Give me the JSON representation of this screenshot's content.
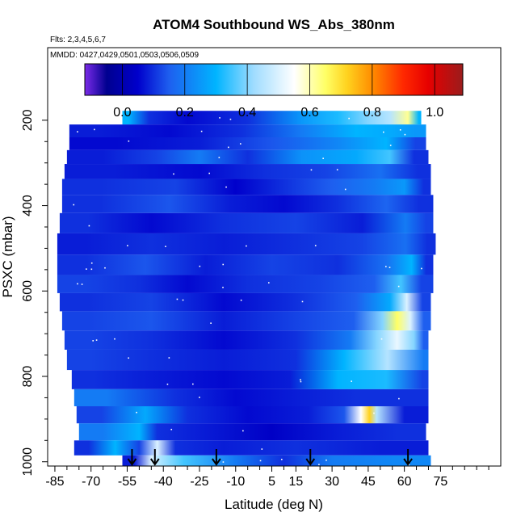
{
  "chart_data": {
    "type": "heatmap",
    "title": "ATOM4 Southbound WS_Abs_380nm",
    "subtitle_flights": "Flts: 2,3,4,5,6,7",
    "subtitle_dates": "MMDD: 0427,0429,0501,0503,0506,0509",
    "xlabel": "Latitude (deg N)",
    "ylabel": "PSXC (mbar)",
    "xlim": [
      -88,
      100
    ],
    "ylim": [
      1010,
      30
    ],
    "x_ticks": [
      -85,
      -70,
      -55,
      -40,
      -25,
      -10,
      5,
      15,
      30,
      45,
      60,
      75
    ],
    "y_ticks": [
      200,
      400,
      600,
      800,
      1000
    ],
    "colorbar": {
      "range": [
        -0.12,
        1.09
      ],
      "ticks": [
        0.0,
        0.2,
        0.4,
        0.6,
        0.8,
        1.0
      ],
      "tick_labels": [
        "0.0",
        "0.2",
        "0.4",
        "0.6",
        "0.8",
        "1.0"
      ],
      "divisions": [
        0.0,
        0.2,
        0.4,
        0.6,
        0.8,
        1.0
      ],
      "colors": [
        "#7b2be8",
        "#00008f",
        "#0000cc",
        "#1e5fef",
        "#00b4ff",
        "#9fdcff",
        "#ffffff",
        "#ffff66",
        "#ffd21e",
        "#ff8c00",
        "#ff2800",
        "#e60000",
        "#9b1c1c"
      ],
      "color_stops": [
        -0.12,
        -0.05,
        0.05,
        0.15,
        0.3,
        0.42,
        0.55,
        0.65,
        0.72,
        0.8,
        0.9,
        0.98,
        1.09
      ]
    },
    "layers": [
      {
        "p": 195,
        "lat_min": -57,
        "lat_max": 67,
        "segments": [
          [
            -57,
            -52,
            0.3
          ],
          [
            -52,
            -40,
            0.1
          ],
          [
            -40,
            -20,
            0.06
          ],
          [
            -20,
            10,
            0.1
          ],
          [
            10,
            25,
            0.25
          ],
          [
            25,
            40,
            0.32
          ],
          [
            40,
            50,
            0.4
          ],
          [
            50,
            58,
            0.45
          ],
          [
            58,
            65,
            0.62
          ],
          [
            65,
            67,
            0.3
          ]
        ]
      },
      {
        "p": 225,
        "lat_min": -79,
        "lat_max": 69,
        "segments": [
          [
            -79,
            -55,
            0.08
          ],
          [
            -55,
            -20,
            0.06
          ],
          [
            -20,
            5,
            0.1
          ],
          [
            5,
            30,
            0.2
          ],
          [
            30,
            50,
            0.3
          ],
          [
            50,
            60,
            0.28
          ],
          [
            60,
            69,
            0.25
          ]
        ]
      },
      {
        "p": 255,
        "lat_min": -79,
        "lat_max": 69,
        "segments": [
          [
            -79,
            -40,
            0.06
          ],
          [
            -40,
            -10,
            0.08
          ],
          [
            -10,
            20,
            0.14
          ],
          [
            20,
            45,
            0.22
          ],
          [
            45,
            60,
            0.3
          ],
          [
            60,
            69,
            0.12
          ]
        ]
      },
      {
        "p": 285,
        "lat_min": -80,
        "lat_max": 70,
        "segments": [
          [
            -80,
            -50,
            0.08
          ],
          [
            -50,
            -35,
            0.12
          ],
          [
            -35,
            -15,
            0.2
          ],
          [
            -15,
            5,
            0.1
          ],
          [
            5,
            30,
            0.24
          ],
          [
            30,
            50,
            0.28
          ],
          [
            50,
            58,
            0.35
          ],
          [
            58,
            70,
            0.1
          ]
        ]
      },
      {
        "p": 320,
        "lat_min": -81,
        "lat_max": 71,
        "segments": [
          [
            -81,
            -40,
            0.08
          ],
          [
            -40,
            -10,
            0.06
          ],
          [
            -10,
            15,
            0.1
          ],
          [
            15,
            40,
            0.12
          ],
          [
            40,
            60,
            0.18
          ],
          [
            60,
            71,
            0.1
          ]
        ]
      },
      {
        "p": 355,
        "lat_min": -82,
        "lat_max": 71,
        "segments": [
          [
            -82,
            -50,
            0.1
          ],
          [
            -50,
            -20,
            0.12
          ],
          [
            -20,
            0,
            0.05
          ],
          [
            0,
            20,
            0.1
          ],
          [
            20,
            40,
            0.15
          ],
          [
            40,
            55,
            0.2
          ],
          [
            55,
            65,
            0.25
          ],
          [
            65,
            71,
            0.1
          ]
        ]
      },
      {
        "p": 395,
        "lat_min": -82,
        "lat_max": 72,
        "segments": [
          [
            -82,
            -50,
            0.1
          ],
          [
            -50,
            -25,
            0.14
          ],
          [
            -25,
            0,
            0.08
          ],
          [
            0,
            20,
            0.06
          ],
          [
            20,
            45,
            0.1
          ],
          [
            45,
            60,
            0.16
          ],
          [
            60,
            72,
            0.1
          ]
        ]
      },
      {
        "p": 440,
        "lat_min": -83,
        "lat_max": 72,
        "segments": [
          [
            -83,
            -60,
            0.1
          ],
          [
            -60,
            -30,
            0.06
          ],
          [
            -30,
            0,
            0.1
          ],
          [
            0,
            30,
            0.12
          ],
          [
            30,
            55,
            0.08
          ],
          [
            55,
            66,
            0.2
          ],
          [
            66,
            72,
            0.12
          ]
        ]
      },
      {
        "p": 490,
        "lat_min": -84,
        "lat_max": 73,
        "segments": [
          [
            -84,
            -60,
            0.08
          ],
          [
            -60,
            -30,
            0.1
          ],
          [
            -30,
            0,
            0.08
          ],
          [
            0,
            30,
            0.1
          ],
          [
            30,
            55,
            0.12
          ],
          [
            55,
            66,
            0.18
          ],
          [
            66,
            73,
            0.1
          ]
        ]
      },
      {
        "p": 540,
        "lat_min": -84,
        "lat_max": 72,
        "segments": [
          [
            -84,
            -60,
            0.1
          ],
          [
            -60,
            -35,
            0.14
          ],
          [
            -35,
            -10,
            0.08
          ],
          [
            -10,
            20,
            0.12
          ],
          [
            20,
            45,
            0.1
          ],
          [
            45,
            60,
            0.18
          ],
          [
            60,
            66,
            0.3
          ],
          [
            66,
            72,
            0.1
          ]
        ]
      },
      {
        "p": 585,
        "lat_min": -84,
        "lat_max": 72,
        "segments": [
          [
            -84,
            -60,
            0.12
          ],
          [
            -60,
            -40,
            0.1
          ],
          [
            -40,
            -20,
            0.06
          ],
          [
            -20,
            10,
            0.1
          ],
          [
            10,
            40,
            0.12
          ],
          [
            40,
            55,
            0.15
          ],
          [
            55,
            62,
            0.35
          ],
          [
            62,
            72,
            0.12
          ]
        ]
      },
      {
        "p": 625,
        "lat_min": -83,
        "lat_max": 71,
        "segments": [
          [
            -83,
            -60,
            0.1
          ],
          [
            -60,
            -30,
            0.12
          ],
          [
            -30,
            0,
            0.06
          ],
          [
            0,
            30,
            0.1
          ],
          [
            30,
            50,
            0.15
          ],
          [
            50,
            58,
            0.28
          ],
          [
            58,
            64,
            0.5
          ],
          [
            64,
            71,
            0.12
          ]
        ]
      },
      {
        "p": 670,
        "lat_min": -82,
        "lat_max": 71,
        "segments": [
          [
            -82,
            -60,
            0.12
          ],
          [
            -60,
            -30,
            0.14
          ],
          [
            -30,
            0,
            0.08
          ],
          [
            0,
            30,
            0.12
          ],
          [
            30,
            48,
            0.15
          ],
          [
            48,
            54,
            0.4
          ],
          [
            54,
            60,
            0.65
          ],
          [
            60,
            65,
            0.5
          ],
          [
            65,
            71,
            0.15
          ]
        ]
      },
      {
        "p": 715,
        "lat_min": -81,
        "lat_max": 70,
        "segments": [
          [
            -81,
            -60,
            0.12
          ],
          [
            -60,
            -30,
            0.1
          ],
          [
            -30,
            0,
            0.06
          ],
          [
            0,
            30,
            0.1
          ],
          [
            30,
            45,
            0.2
          ],
          [
            45,
            52,
            0.4
          ],
          [
            52,
            62,
            0.52
          ],
          [
            62,
            66,
            0.4
          ],
          [
            66,
            70,
            0.15
          ]
        ]
      },
      {
        "p": 760,
        "lat_min": -80,
        "lat_max": 70,
        "segments": [
          [
            -80,
            -60,
            0.12
          ],
          [
            -60,
            -30,
            0.1
          ],
          [
            -30,
            0,
            0.08
          ],
          [
            0,
            30,
            0.1
          ],
          [
            30,
            40,
            0.3
          ],
          [
            40,
            66,
            0.45
          ],
          [
            66,
            70,
            0.2
          ]
        ]
      },
      {
        "p": 810,
        "lat_min": -78,
        "lat_max": 70,
        "segments": [
          [
            -78,
            -60,
            0.1
          ],
          [
            -60,
            -30,
            0.08
          ],
          [
            -30,
            0,
            0.06
          ],
          [
            0,
            25,
            0.08
          ],
          [
            25,
            40,
            0.3
          ],
          [
            40,
            65,
            0.32
          ],
          [
            65,
            70,
            0.12
          ]
        ]
      },
      {
        "p": 850,
        "lat_min": -77,
        "lat_max": 70,
        "segments": [
          [
            -77,
            -50,
            0.2
          ],
          [
            -50,
            -20,
            0.1
          ],
          [
            -20,
            0,
            0.06
          ],
          [
            0,
            30,
            0.08
          ],
          [
            30,
            50,
            0.1
          ],
          [
            50,
            70,
            0.1
          ]
        ]
      },
      {
        "p": 890,
        "lat_min": -76,
        "lat_max": 70,
        "segments": [
          [
            -76,
            -55,
            0.12
          ],
          [
            -55,
            -40,
            0.28
          ],
          [
            -40,
            -20,
            0.1
          ],
          [
            -20,
            10,
            0.06
          ],
          [
            10,
            30,
            0.08
          ],
          [
            30,
            40,
            0.14
          ],
          [
            40,
            44,
            0.55
          ],
          [
            44,
            47,
            0.72
          ],
          [
            47,
            50,
            0.45
          ],
          [
            50,
            70,
            0.08
          ]
        ]
      },
      {
        "p": 930,
        "lat_min": -75,
        "lat_max": 69,
        "segments": [
          [
            -75,
            -55,
            0.2
          ],
          [
            -55,
            -45,
            0.3
          ],
          [
            -45,
            -40,
            0.1
          ],
          [
            -40,
            -10,
            0.08
          ],
          [
            -10,
            20,
            0.04
          ],
          [
            20,
            45,
            0.08
          ],
          [
            45,
            69,
            0.1
          ]
        ]
      },
      {
        "p": 970,
        "lat_min": -77,
        "lat_max": 70,
        "segments": [
          [
            -77,
            -65,
            0.1
          ],
          [
            -65,
            -55,
            0.3
          ],
          [
            -55,
            -45,
            0.12
          ],
          [
            -45,
            -40,
            0.5
          ],
          [
            -40,
            -30,
            0.1
          ],
          [
            -30,
            0,
            0.08
          ],
          [
            0,
            30,
            0.1
          ],
          [
            30,
            70,
            0.08
          ]
        ]
      },
      {
        "p": 1000,
        "lat_min": -57,
        "lat_max": 71,
        "segments": [
          [
            -57,
            -47,
            0.08
          ],
          [
            -47,
            -43,
            0.5
          ],
          [
            -43,
            -20,
            0.35
          ],
          [
            -20,
            0,
            0.2
          ],
          [
            0,
            20,
            0.1
          ],
          [
            20,
            40,
            0.2
          ],
          [
            40,
            71,
            0.22
          ]
        ]
      }
    ],
    "arrows_lat": [
      -53,
      -43.5,
      -18,
      21,
      61.5
    ],
    "arrows_p": [
      1000,
      1000,
      1000,
      1000,
      1000
    ]
  }
}
